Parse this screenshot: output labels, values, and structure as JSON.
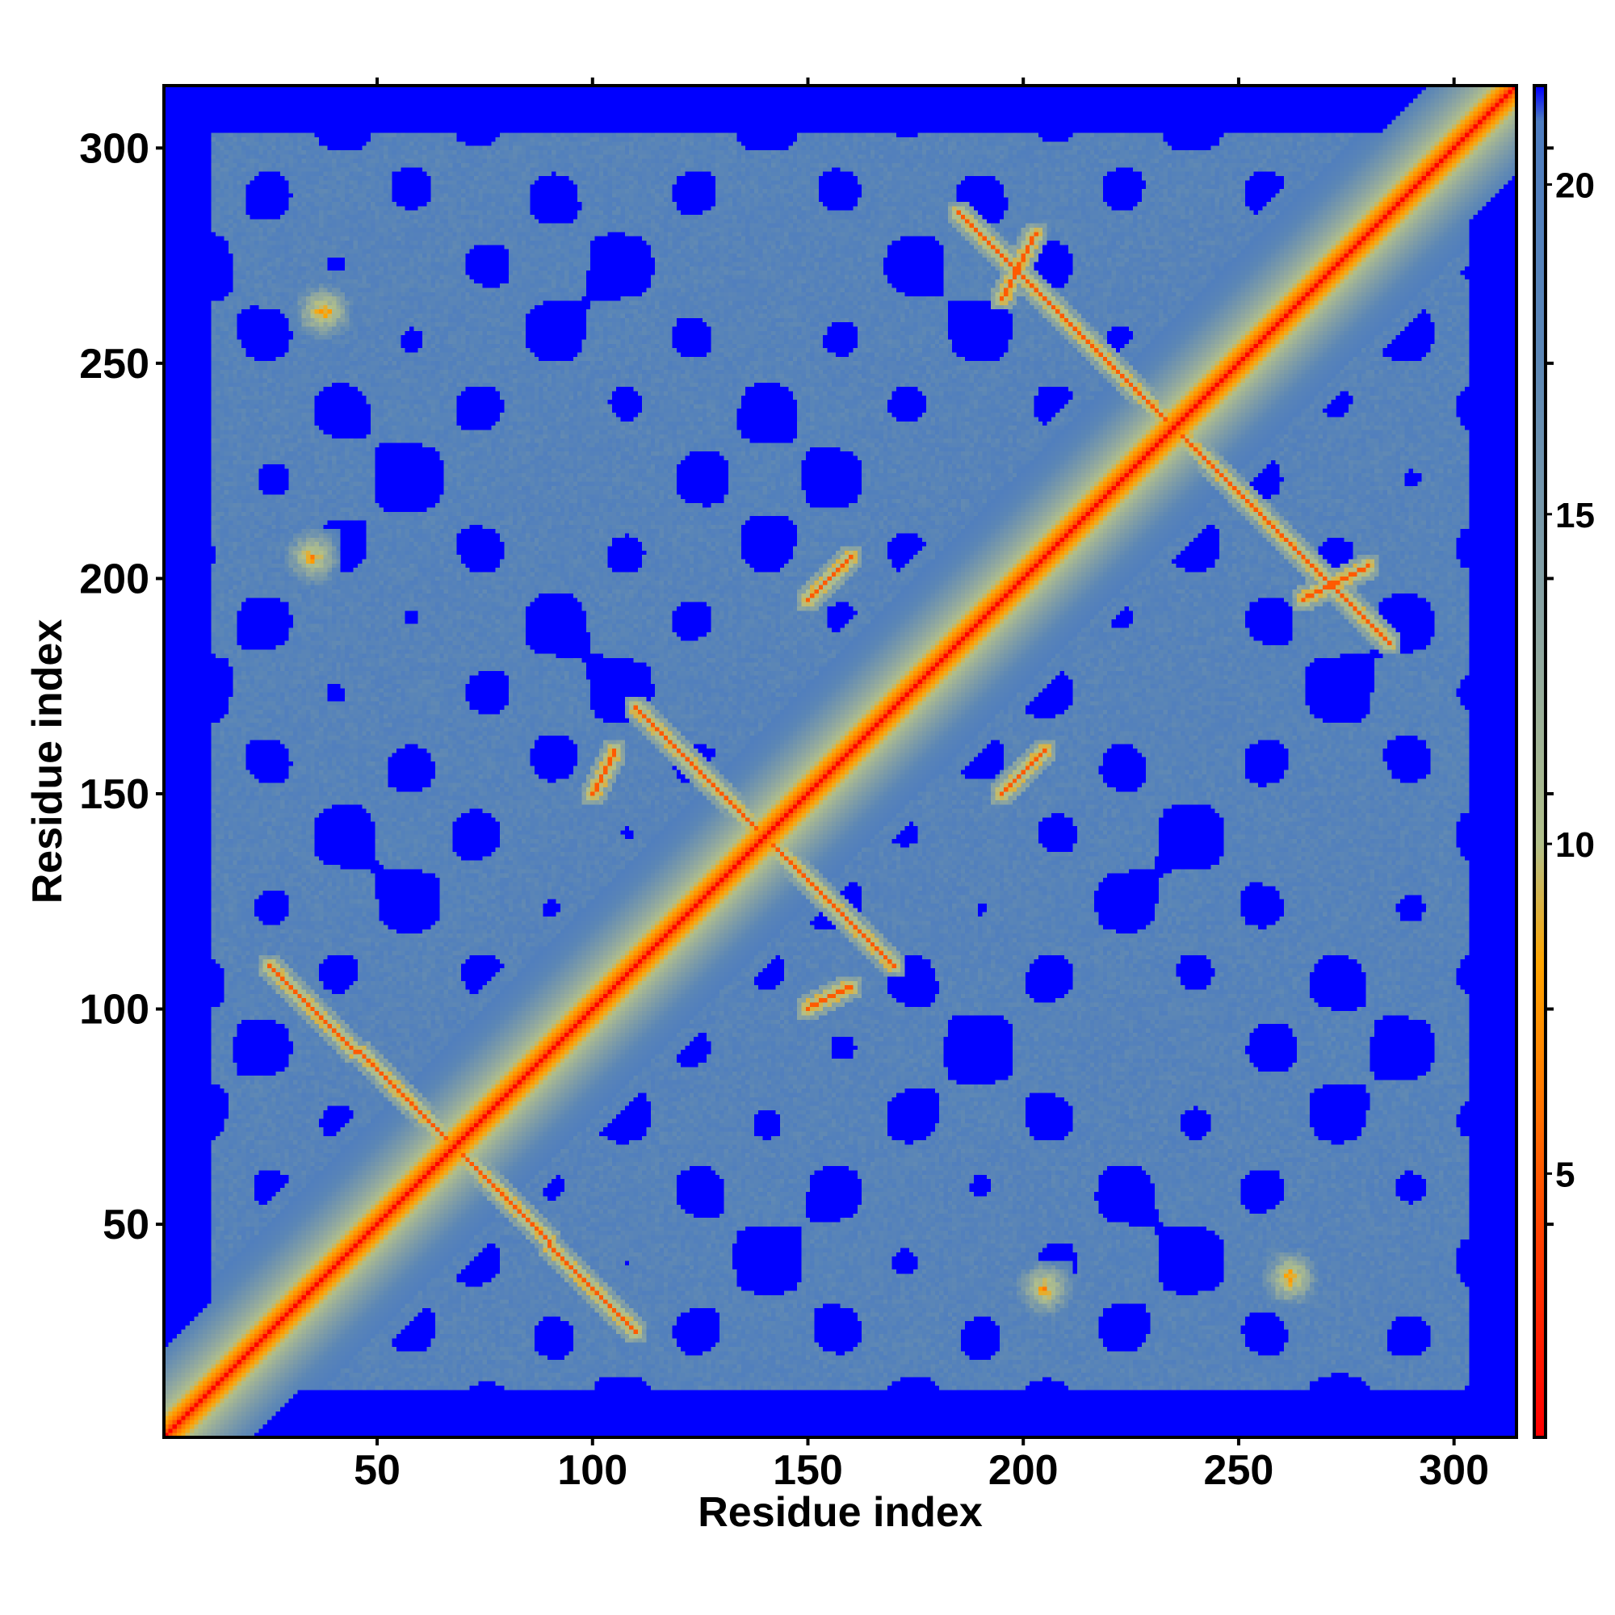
{
  "chart_data": {
    "type": "heatmap",
    "title": "",
    "xlabel": "Residue index",
    "ylabel": "Residue index",
    "n_residues": 314,
    "xlim": [
      1,
      314
    ],
    "ylim": [
      1,
      314
    ],
    "x_ticks": [
      50,
      100,
      150,
      200,
      250,
      300
    ],
    "y_ticks": [
      50,
      100,
      150,
      200,
      250,
      300
    ],
    "x_tick_labels": [
      "50",
      "100",
      "150",
      "200",
      "250",
      "300"
    ],
    "y_tick_labels": [
      "50",
      "100",
      "150",
      "200",
      "250",
      "300"
    ],
    "value_description": "pairwise distance map; values saturate at the top of the color scale",
    "colorbar": {
      "range": [
        1,
        21.5
      ],
      "ticks": [
        5,
        10,
        15,
        20
      ],
      "tick_labels": [
        "5",
        "10",
        "15",
        "20"
      ],
      "colors": [
        {
          "value": 1.0,
          "color": "#ff0000"
        },
        {
          "value": 4.0,
          "color": "#ff4000"
        },
        {
          "value": 6.5,
          "color": "#ff8000"
        },
        {
          "value": 8.2,
          "color": "#ffa500"
        },
        {
          "value": 10.0,
          "color": "#b2c08a"
        },
        {
          "value": 13.0,
          "color": "#8fa7a0"
        },
        {
          "value": 17.5,
          "color": "#5b86b6"
        },
        {
          "value": 21.0,
          "color": "#4d7cc0"
        },
        {
          "value": 21.5,
          "color": "#0000ff"
        }
      ]
    },
    "contact_features": [
      {
        "type": "diagonal",
        "note": "main diagonal contacts (distance ~0)"
      },
      {
        "type": "antiparallel",
        "i": [
          25,
          110
        ],
        "j": [
          25,
          110
        ]
      },
      {
        "type": "antiparallel",
        "i": [
          110,
          170
        ],
        "j": [
          110,
          170
        ]
      },
      {
        "type": "antiparallel",
        "i": [
          185,
          285
        ],
        "j": [
          185,
          285
        ]
      },
      {
        "type": "parallel",
        "from": [
          150,
          100
        ],
        "to": [
          160,
          105
        ]
      },
      {
        "type": "parallel",
        "from": [
          150,
          195
        ],
        "to": [
          160,
          205
        ]
      },
      {
        "type": "parallel",
        "from": [
          265,
          195
        ],
        "to": [
          280,
          203
        ]
      },
      {
        "type": "cluster",
        "center": [
          37,
          262
        ]
      },
      {
        "type": "cluster",
        "center": [
          262,
          38
        ]
      },
      {
        "type": "cluster",
        "center": [
          205,
          35
        ]
      },
      {
        "type": "cluster",
        "center": [
          35,
          205
        ]
      }
    ],
    "grid": false,
    "legend": "colorbar-right"
  }
}
